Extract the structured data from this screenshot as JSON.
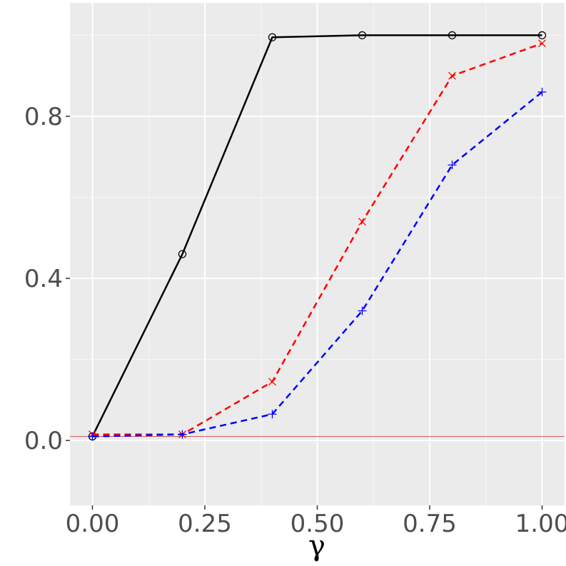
{
  "chart_data": {
    "type": "line",
    "title": "",
    "xlabel": "γ",
    "ylabel": "",
    "x": [
      0.0,
      0.2,
      0.4,
      0.6,
      0.8,
      1.0
    ],
    "xlim": [
      -0.05,
      1.05
    ],
    "ylim": [
      -0.16,
      1.08
    ],
    "x_ticks": [
      0.0,
      0.25,
      0.5,
      0.75,
      1.0
    ],
    "x_tick_labels": [
      "0.00",
      "0.25",
      "0.50",
      "0.75",
      "1.00"
    ],
    "y_ticks": [
      0.0,
      0.4,
      0.8
    ],
    "y_tick_labels": [
      "0.0",
      "0.4",
      "0.8"
    ],
    "grid": true,
    "legend": "none",
    "reference_line": {
      "y": 0.01,
      "color": "#cd5c5c"
    },
    "series": [
      {
        "values": [
          0.01,
          0.46,
          0.995,
          1.0,
          1.0,
          1.0
        ],
        "color": "#000000",
        "line": "solid",
        "marker": "circle"
      },
      {
        "values": [
          0.015,
          0.015,
          0.145,
          0.54,
          0.9,
          0.98
        ],
        "color": "#ff0000",
        "line": "dashed",
        "marker": "x"
      },
      {
        "values": [
          0.01,
          0.015,
          0.065,
          0.32,
          0.68,
          0.86
        ],
        "color": "#0000ff",
        "line": "dashed",
        "marker": "plus"
      }
    ]
  }
}
